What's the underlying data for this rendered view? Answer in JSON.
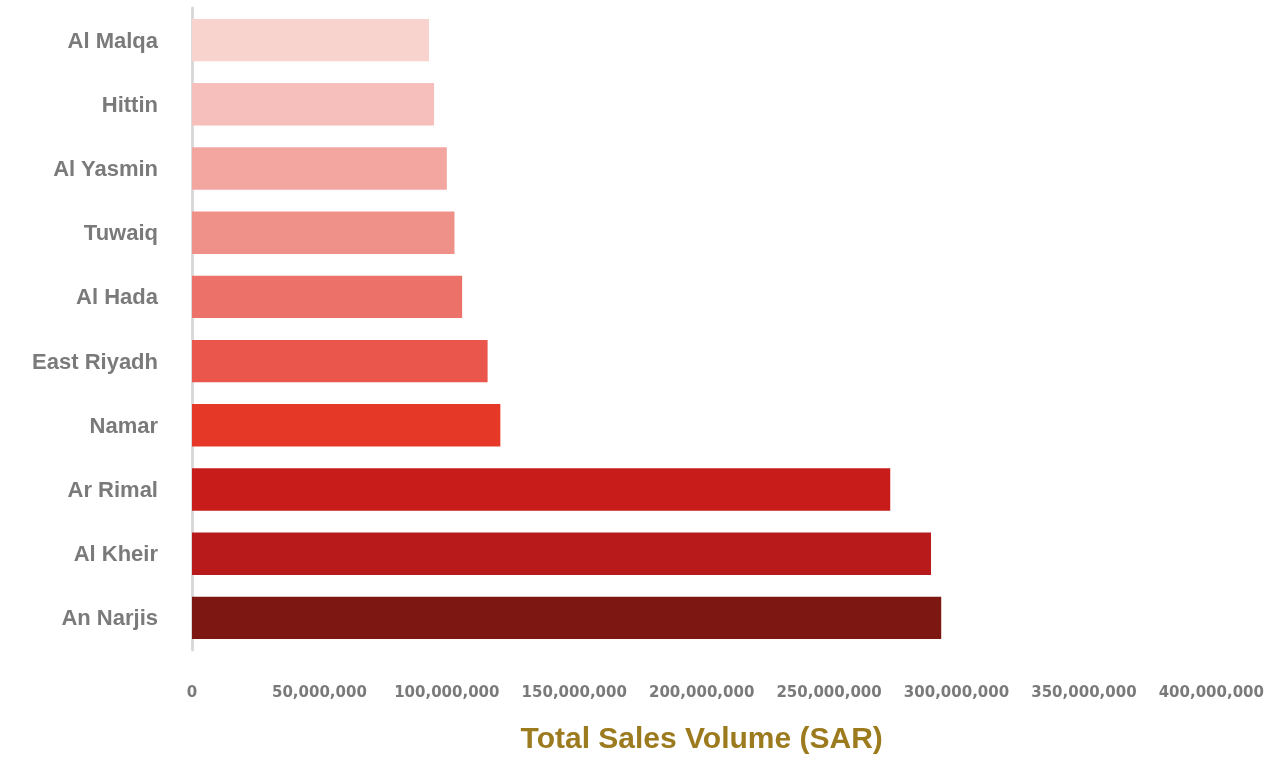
{
  "chart_data": {
    "type": "bar",
    "orientation": "horizontal",
    "xlabel": "Total Sales Volume (SAR)",
    "categories": [
      "Al Malqa",
      "Hittin",
      "Al Yasmin",
      "Tuwaiq",
      "Al Hada",
      "East Riyadh",
      "Namar",
      "Ar Rimal",
      "Al Kheir",
      "An Narjis"
    ],
    "values": [
      93000000,
      95000000,
      100000000,
      103000000,
      106000000,
      116000000,
      121000000,
      274000000,
      290000000,
      294000000
    ],
    "colors": [
      "#f8d2cc",
      "#f7bfbb",
      "#f3a69f",
      "#f09189",
      "#ec7168",
      "#ea564b",
      "#e63827",
      "#c81c1a",
      "#b8191a",
      "#7c1711"
    ],
    "xlim": [
      0,
      400000000
    ],
    "xticks": [
      0,
      {
        "value": 50000000,
        "label": "50,000,000"
      },
      {
        "value": 100000000,
        "label": "100,000,000"
      },
      {
        "value": 150000000,
        "label": "150,000,000"
      },
      {
        "value": 200000000,
        "label": "200,000,000"
      },
      {
        "value": 250000000,
        "label": "250,000,000"
      },
      {
        "value": 300000000,
        "label": "300,000,000"
      },
      {
        "value": 350000000,
        "label": "350,000,000"
      },
      {
        "value": 400000000,
        "label": "400,000,000"
      }
    ],
    "grid": false
  }
}
